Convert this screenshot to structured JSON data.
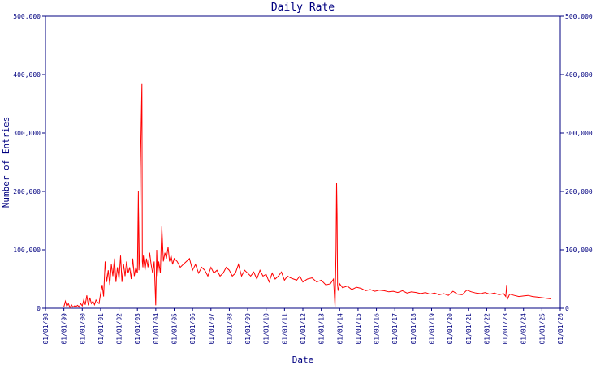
{
  "chart_data": {
    "type": "line",
    "title": "Daily Rate",
    "xlabel": "Date",
    "ylabel": "Number of Entries",
    "ylim": [
      0,
      500000
    ],
    "xlim": [
      "1998-01-01",
      "2026-01-01"
    ],
    "y_ticks": [
      0,
      100000,
      200000,
      300000,
      400000,
      500000
    ],
    "y_tick_labels": [
      "0",
      "100,000",
      "200,000",
      "300,000",
      "400,000",
      "500,000"
    ],
    "y_axis_right": true,
    "x_tick_labels": [
      "01/01/98",
      "01/01/99",
      "01/01/00",
      "01/01/01",
      "01/01/02",
      "01/01/03",
      "01/01/04",
      "01/01/05",
      "01/01/06",
      "01/01/07",
      "01/01/08",
      "01/01/09",
      "01/01/10",
      "01/01/11",
      "01/01/12",
      "01/01/13",
      "01/01/14",
      "01/01/15",
      "01/01/16",
      "01/01/17",
      "01/01/18",
      "01/01/19",
      "01/01/20",
      "01/01/21",
      "01/01/22",
      "01/01/23",
      "01/01/24",
      "01/01/25",
      "01/01/26"
    ],
    "grid": false,
    "colors": {
      "series": "#ff0000",
      "axes": "#000080",
      "text": "#000080"
    },
    "series": [
      {
        "x": [
          "1999-01-01",
          "1999-02-01",
          "1999-03-01",
          "1999-04-01",
          "1999-05-01",
          "1999-06-01",
          "1999-07-01",
          "1999-08-01",
          "1999-09-01",
          "1999-10-01",
          "1999-11-01",
          "1999-12-01",
          "2000-01-01",
          "2000-02-01",
          "2000-03-01",
          "2000-04-01",
          "2000-05-01",
          "2000-06-01",
          "2000-07-01",
          "2000-08-01",
          "2000-09-01",
          "2000-10-01",
          "2000-11-01",
          "2000-12-01",
          "2001-01-01",
          "2001-02-01",
          "2001-03-01",
          "2001-04-01",
          "2001-05-01",
          "2001-06-01",
          "2001-07-01",
          "2001-08-01",
          "2001-09-01",
          "2001-10-01",
          "2001-11-01",
          "2001-12-01",
          "2002-01-01",
          "2002-02-01",
          "2002-03-01",
          "2002-04-01",
          "2002-05-01",
          "2002-06-01",
          "2002-07-01",
          "2002-08-01",
          "2002-09-01",
          "2002-10-01",
          "2002-11-01",
          "2002-12-01",
          "2003-01-01",
          "2003-01-20",
          "2003-02-01",
          "2003-02-15",
          "2003-03-01",
          "2003-04-01",
          "2003-04-10",
          "2003-04-20",
          "2003-05-01",
          "2003-06-01",
          "2003-07-01",
          "2003-08-01",
          "2003-09-01",
          "2003-10-01",
          "2003-11-01",
          "2003-12-01",
          "2004-01-01",
          "2004-01-20",
          "2004-02-01",
          "2004-02-10",
          "2004-03-01",
          "2004-04-01",
          "2004-05-01",
          "2004-06-01",
          "2004-07-01",
          "2004-08-01",
          "2004-09-01",
          "2004-10-01",
          "2004-11-01",
          "2004-12-01",
          "2005-01-01",
          "2005-03-01",
          "2005-05-01",
          "2005-07-01",
          "2005-09-01",
          "2005-11-01",
          "2006-01-01",
          "2006-03-01",
          "2006-05-01",
          "2006-07-01",
          "2006-09-01",
          "2006-11-01",
          "2007-01-01",
          "2007-03-01",
          "2007-05-01",
          "2007-07-01",
          "2007-09-01",
          "2007-11-01",
          "2008-01-01",
          "2008-03-01",
          "2008-05-01",
          "2008-07-01",
          "2008-09-01",
          "2008-11-01",
          "2009-01-01",
          "2009-03-01",
          "2009-05-01",
          "2009-07-01",
          "2009-09-01",
          "2009-11-01",
          "2010-01-01",
          "2010-03-01",
          "2010-05-01",
          "2010-07-01",
          "2010-09-01",
          "2010-11-01",
          "2011-01-01",
          "2011-03-01",
          "2011-05-01",
          "2011-07-01",
          "2011-09-01",
          "2011-11-01",
          "2012-01-01",
          "2012-04-01",
          "2012-07-01",
          "2012-10-01",
          "2013-01-01",
          "2013-04-01",
          "2013-07-01",
          "2013-09-01",
          "2013-10-01",
          "2013-10-20",
          "2013-11-01",
          "2013-11-10",
          "2013-11-20",
          "2013-12-01",
          "2014-01-01",
          "2014-03-01",
          "2014-06-01",
          "2014-09-01",
          "2014-12-01",
          "2015-03-01",
          "2015-06-01",
          "2015-09-01",
          "2015-12-01",
          "2016-03-01",
          "2016-06-01",
          "2016-09-01",
          "2016-12-01",
          "2017-03-01",
          "2017-06-01",
          "2017-09-01",
          "2017-12-01",
          "2018-03-01",
          "2018-06-01",
          "2018-09-01",
          "2018-12-01",
          "2019-03-01",
          "2019-06-01",
          "2019-09-01",
          "2019-12-01",
          "2020-03-01",
          "2020-06-01",
          "2020-09-01",
          "2020-12-01",
          "2021-03-01",
          "2021-06-01",
          "2021-09-01",
          "2021-12-01",
          "2022-03-01",
          "2022-06-01",
          "2022-09-01",
          "2022-12-01",
          "2023-01-15",
          "2023-02-01",
          "2023-02-15",
          "2023-04-01",
          "2023-07-01",
          "2023-10-01",
          "2024-01-01",
          "2024-04-01",
          "2024-07-01",
          "2024-10-01",
          "2025-01-01",
          "2025-04-01",
          "2025-07-01"
        ],
        "y": [
          2000,
          12000,
          3000,
          8000,
          1000,
          6000,
          2000,
          4000,
          3000,
          5000,
          2000,
          8000,
          4000,
          15000,
          6000,
          22000,
          5000,
          18000,
          8000,
          12000,
          6000,
          14000,
          10000,
          8000,
          25000,
          40000,
          20000,
          80000,
          45000,
          65000,
          40000,
          75000,
          55000,
          85000,
          45000,
          70000,
          50000,
          90000,
          45000,
          75000,
          55000,
          80000,
          60000,
          70000,
          50000,
          85000,
          55000,
          70000,
          60000,
          200000,
          65000,
          90000,
          240000,
          385000,
          80000,
          70000,
          90000,
          65000,
          85000,
          70000,
          95000,
          75000,
          60000,
          80000,
          5000,
          100000,
          70000,
          55000,
          80000,
          60000,
          140000,
          80000,
          95000,
          85000,
          105000,
          80000,
          90000,
          75000,
          85000,
          80000,
          70000,
          75000,
          80000,
          85000,
          65000,
          75000,
          60000,
          70000,
          65000,
          55000,
          70000,
          60000,
          65000,
          55000,
          60000,
          70000,
          65000,
          55000,
          60000,
          75000,
          55000,
          65000,
          60000,
          55000,
          62000,
          50000,
          65000,
          55000,
          58000,
          45000,
          60000,
          50000,
          55000,
          62000,
          48000,
          55000,
          52000,
          50000,
          48000,
          55000,
          45000,
          50000,
          52000,
          45000,
          48000,
          40000,
          42000,
          50000,
          2000,
          100000,
          215000,
          160000,
          40000,
          30000,
          42000,
          35000,
          38000,
          32000,
          36000,
          34000,
          30000,
          32000,
          29000,
          31000,
          30000,
          28000,
          29000,
          27000,
          30000,
          26000,
          28000,
          27000,
          25000,
          27000,
          24000,
          26000,
          23000,
          25000,
          22000,
          29000,
          24000,
          23000,
          31000,
          28000,
          26000,
          25000,
          27000,
          24000,
          26000,
          23000,
          25000,
          20000,
          40000,
          15000,
          24000,
          22000,
          20000,
          21000,
          22000,
          20000,
          19000,
          18000,
          17000,
          16000
        ]
      }
    ]
  }
}
